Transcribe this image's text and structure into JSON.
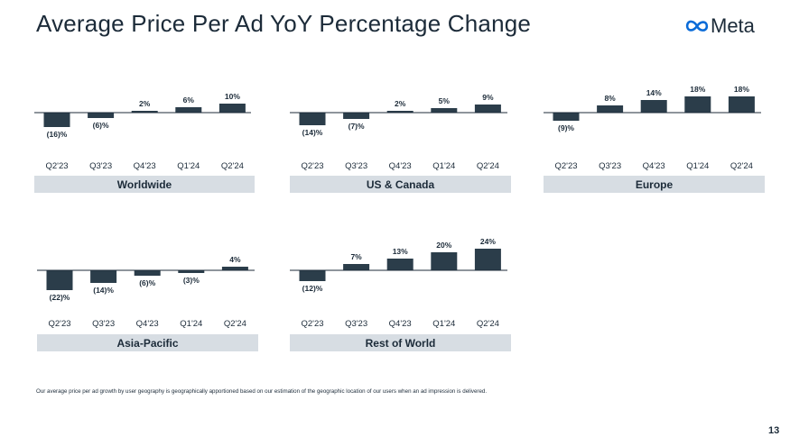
{
  "title": "Average Price Per Ad YoY Percentage Change",
  "logo": {
    "text": "Meta",
    "icon": "meta-infinity-icon"
  },
  "footnote": "Our average price per ad growth by user geography is geographically apportioned based on our estimation of the geographic location of our users when an ad impression is delivered.",
  "page_number": "13",
  "colors": {
    "bar": "#2b3d4a",
    "panel": "#d7dde3",
    "text": "#1c2b39",
    "axis": "#1c2b39"
  },
  "chart_data": [
    {
      "type": "bar",
      "title": "Worldwide",
      "categories": [
        "Q2'23",
        "Q3'23",
        "Q4'23",
        "Q1'24",
        "Q2'24"
      ],
      "values": [
        -16,
        -6,
        2,
        6,
        10
      ],
      "labels": [
        "(16)%",
        "(6)%",
        "2%",
        "6%",
        "10%"
      ],
      "unit": "%"
    },
    {
      "type": "bar",
      "title": "US & Canada",
      "categories": [
        "Q2'23",
        "Q3'23",
        "Q4'23",
        "Q1'24",
        "Q2'24"
      ],
      "values": [
        -14,
        -7,
        2,
        5,
        9
      ],
      "labels": [
        "(14)%",
        "(7)%",
        "2%",
        "5%",
        "9%"
      ],
      "unit": "%"
    },
    {
      "type": "bar",
      "title": "Europe",
      "categories": [
        "Q2'23",
        "Q3'23",
        "Q4'23",
        "Q1'24",
        "Q2'24"
      ],
      "values": [
        -9,
        8,
        14,
        18,
        18
      ],
      "labels": [
        "(9)%",
        "8%",
        "14%",
        "18%",
        "18%"
      ],
      "unit": "%"
    },
    {
      "type": "bar",
      "title": "Asia-Pacific",
      "categories": [
        "Q2'23",
        "Q3'23",
        "Q4'23",
        "Q1'24",
        "Q2'24"
      ],
      "values": [
        -22,
        -14,
        -6,
        -3,
        4
      ],
      "labels": [
        "(22)%",
        "(14)%",
        "(6)%",
        "(3)%",
        "4%"
      ],
      "unit": "%"
    },
    {
      "type": "bar",
      "title": "Rest of World",
      "categories": [
        "Q2'23",
        "Q3'23",
        "Q4'23",
        "Q1'24",
        "Q2'24"
      ],
      "values": [
        -12,
        7,
        13,
        20,
        24
      ],
      "labels": [
        "(12)%",
        "7%",
        "13%",
        "20%",
        "24%"
      ],
      "unit": "%"
    }
  ]
}
